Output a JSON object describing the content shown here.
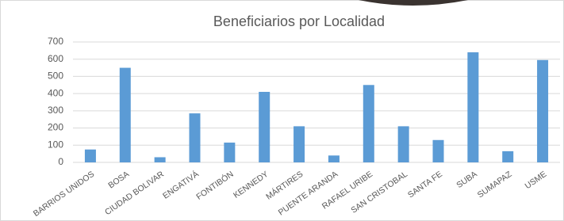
{
  "chart_data": {
    "type": "bar",
    "title": "Beneficiarios por Localidad",
    "categories": [
      "BARRIOS UNIDOS",
      "BOSA",
      "CIUDAD BOLIVAR",
      "ENGATIVÁ",
      "FONTIBÓN",
      "KENNEDY",
      "MÁRTIRES",
      "PUENTE ARANDA",
      "RAFAEL URIBE",
      "SAN CRISTOBAL",
      "SANTA FE",
      "SUBA",
      "SUMAPAZ",
      "USME"
    ],
    "values": [
      75,
      550,
      30,
      285,
      115,
      410,
      210,
      40,
      450,
      210,
      130,
      640,
      65,
      595
    ],
    "color": "#5b9bd5",
    "ylim": [
      0,
      700
    ],
    "yticks": [
      0,
      100,
      200,
      300,
      400,
      500,
      600,
      700
    ],
    "grid": true
  }
}
